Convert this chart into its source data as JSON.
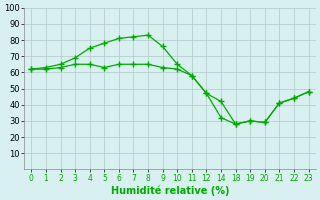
{
  "line1_x": [
    0,
    1,
    2,
    3,
    4,
    5,
    6,
    7,
    8,
    9,
    10,
    11,
    12,
    14,
    18,
    19,
    20,
    21,
    22,
    23
  ],
  "line1_y": [
    62,
    62,
    63,
    65,
    65,
    63,
    65,
    65,
    65,
    63,
    62,
    58,
    47,
    42,
    28,
    30,
    29,
    41,
    44,
    48
  ],
  "line2_y": [
    62,
    63,
    65,
    69,
    75,
    78,
    81,
    82,
    83,
    76,
    65,
    58,
    47,
    32,
    28,
    30,
    29,
    41,
    44,
    48
  ],
  "tick_labels": [
    "0",
    "1",
    "2",
    "3",
    "4",
    "5",
    "6",
    "7",
    "8",
    "9",
    "10",
    "11",
    "12",
    "14",
    "18",
    "19",
    "20",
    "21",
    "22",
    "23"
  ],
  "line_color": "#00aa00",
  "bg_color": "#d8f0f0",
  "grid_color": "#b0c8c8",
  "xlabel": "Humidité relative (%)",
  "xlabel_color": "#00aa00",
  "ylim": [
    0,
    100
  ],
  "yticks": [
    10,
    20,
    30,
    40,
    50,
    60,
    70,
    80,
    90,
    100
  ]
}
